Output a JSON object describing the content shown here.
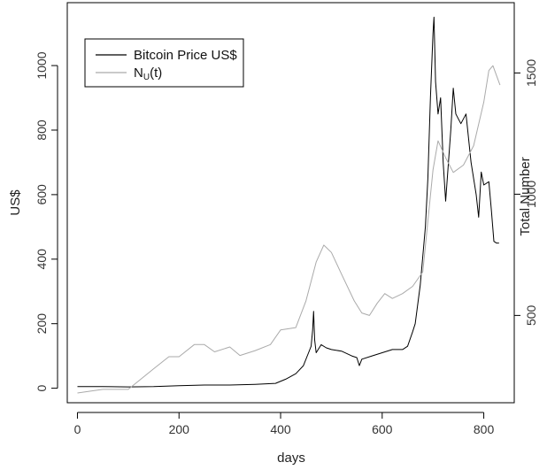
{
  "chart_data": {
    "type": "line",
    "title": "",
    "xlabel": "days",
    "ylabel_left": "US$",
    "ylabel_right": "Total Number",
    "xlim": [
      -20,
      860
    ],
    "ylim_left": [
      -45,
      1195
    ],
    "ylim_right": [
      140,
      1790
    ],
    "x_ticks": [
      0,
      200,
      400,
      600,
      800
    ],
    "y_ticks_left": [
      0,
      200,
      400,
      600,
      800,
      1000
    ],
    "y_ticks_right": [
      500,
      1000,
      1500
    ],
    "grid": false,
    "legend_position": "top-left",
    "legend": {
      "entries": [
        {
          "label": "Bitcoin Price US$",
          "color": "#000000"
        },
        {
          "label_main": "N",
          "label_sub": "U",
          "label_tail": "(t)",
          "color": "#aaaaaa"
        }
      ]
    },
    "series": [
      {
        "name": "Bitcoin Price US$",
        "axis": "left",
        "color": "#000000",
        "points": [
          [
            0,
            5
          ],
          [
            50,
            5
          ],
          [
            100,
            4
          ],
          [
            150,
            5
          ],
          [
            200,
            8
          ],
          [
            250,
            10
          ],
          [
            300,
            10
          ],
          [
            350,
            12
          ],
          [
            390,
            15
          ],
          [
            410,
            28
          ],
          [
            430,
            45
          ],
          [
            445,
            70
          ],
          [
            455,
            110
          ],
          [
            460,
            130
          ],
          [
            463,
            180
          ],
          [
            465,
            238
          ],
          [
            467,
            150
          ],
          [
            470,
            110
          ],
          [
            480,
            135
          ],
          [
            490,
            125
          ],
          [
            500,
            120
          ],
          [
            520,
            115
          ],
          [
            540,
            100
          ],
          [
            550,
            95
          ],
          [
            555,
            70
          ],
          [
            560,
            90
          ],
          [
            580,
            100
          ],
          [
            600,
            110
          ],
          [
            620,
            120
          ],
          [
            640,
            120
          ],
          [
            650,
            130
          ],
          [
            660,
            175
          ],
          [
            665,
            200
          ],
          [
            675,
            320
          ],
          [
            685,
            500
          ],
          [
            690,
            650
          ],
          [
            695,
            900
          ],
          [
            700,
            1100
          ],
          [
            702,
            1150
          ],
          [
            705,
            950
          ],
          [
            710,
            850
          ],
          [
            715,
            900
          ],
          [
            720,
            700
          ],
          [
            725,
            580
          ],
          [
            735,
            800
          ],
          [
            740,
            930
          ],
          [
            745,
            850
          ],
          [
            755,
            820
          ],
          [
            765,
            850
          ],
          [
            775,
            700
          ],
          [
            785,
            600
          ],
          [
            790,
            530
          ],
          [
            795,
            670
          ],
          [
            800,
            630
          ],
          [
            810,
            640
          ],
          [
            815,
            550
          ],
          [
            820,
            455
          ],
          [
            825,
            450
          ],
          [
            830,
            450
          ]
        ]
      },
      {
        "name": "N_U(t)",
        "axis": "right",
        "color": "#aaaaaa",
        "points": [
          [
            0,
            180
          ],
          [
            50,
            195
          ],
          [
            100,
            195
          ],
          [
            150,
            280
          ],
          [
            180,
            330
          ],
          [
            200,
            330
          ],
          [
            230,
            380
          ],
          [
            250,
            380
          ],
          [
            270,
            350
          ],
          [
            300,
            370
          ],
          [
            320,
            335
          ],
          [
            350,
            355
          ],
          [
            380,
            380
          ],
          [
            400,
            440
          ],
          [
            430,
            450
          ],
          [
            450,
            560
          ],
          [
            470,
            720
          ],
          [
            485,
            790
          ],
          [
            500,
            760
          ],
          [
            520,
            670
          ],
          [
            545,
            560
          ],
          [
            560,
            510
          ],
          [
            575,
            500
          ],
          [
            590,
            550
          ],
          [
            605,
            590
          ],
          [
            620,
            570
          ],
          [
            640,
            590
          ],
          [
            660,
            620
          ],
          [
            680,
            680
          ],
          [
            700,
            1100
          ],
          [
            710,
            1220
          ],
          [
            725,
            1150
          ],
          [
            740,
            1090
          ],
          [
            760,
            1120
          ],
          [
            780,
            1200
          ],
          [
            800,
            1380
          ],
          [
            810,
            1510
          ],
          [
            818,
            1530
          ],
          [
            825,
            1490
          ],
          [
            832,
            1450
          ]
        ]
      }
    ]
  }
}
